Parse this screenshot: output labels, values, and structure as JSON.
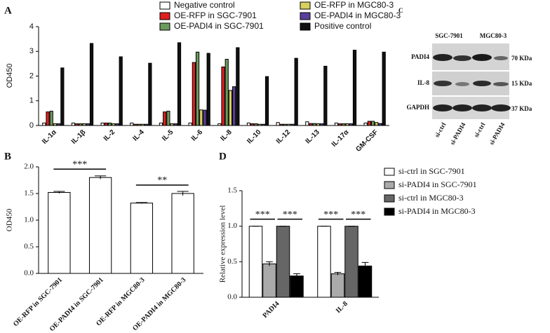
{
  "chart_data": [
    {
      "type": "bar",
      "label": "A",
      "y_label": "OD450",
      "categories": [
        "IL-1α",
        "IL-1β",
        "IL-2",
        "IL-4",
        "IL-5",
        "IL-6",
        "IL-8",
        "IL-10",
        "IL-12",
        "IL-13",
        "IL-17α",
        "GM-CSF"
      ],
      "series": [
        {
          "name": "Negative control",
          "color": "#ffffff",
          "values": [
            0.1,
            0.1,
            0.1,
            0.1,
            0.1,
            0.1,
            0.07,
            0.1,
            0.12,
            0.15,
            0.1,
            0.1
          ]
        },
        {
          "name": "OE-RFP in SGC-7901",
          "color": "#e02020",
          "values": [
            0.55,
            0.07,
            0.1,
            0.05,
            0.55,
            2.55,
            2.37,
            0.07,
            0.05,
            0.08,
            0.07,
            0.17
          ]
        },
        {
          "name": "OE-PADI4 in SGC-7901",
          "color": "#6b9a5e",
          "values": [
            0.58,
            0.07,
            0.1,
            0.05,
            0.58,
            2.97,
            2.68,
            0.07,
            0.05,
            0.08,
            0.07,
            0.17
          ]
        },
        {
          "name": "OE-RFP in MGC80-3",
          "color": "#d8d060",
          "values": [
            0.07,
            0.07,
            0.07,
            0.05,
            0.07,
            0.63,
            1.42,
            0.05,
            0.05,
            0.07,
            0.07,
            0.12
          ]
        },
        {
          "name": "OE-PADI4 in MGC80-3",
          "color": "#5a3f9a",
          "values": [
            0.07,
            0.07,
            0.07,
            0.05,
            0.07,
            0.62,
            1.57,
            0.05,
            0.05,
            0.07,
            0.07,
            0.08
          ]
        },
        {
          "name": "Positive control",
          "color": "#111111",
          "values": [
            2.33,
            3.32,
            2.78,
            2.52,
            3.35,
            2.92,
            3.15,
            1.98,
            2.72,
            2.4,
            3.05,
            2.97
          ]
        }
      ],
      "ylim": [
        0,
        4
      ],
      "yticks": [
        0,
        1,
        2,
        3,
        4
      ]
    },
    {
      "type": "bar",
      "label": "B",
      "y_label": "OD450",
      "categories": [
        "OE-RFP in SGC-7901",
        "OE-PADI4 in SGC-7901",
        "OE-RFP in MGC80-3",
        "OE-PADI4 in MGC80-3"
      ],
      "series": [
        {
          "color": "#ffffff",
          "values": [
            1.52,
            1.8,
            1.32,
            1.5
          ],
          "errors": [
            0.02,
            0.03,
            0.01,
            0.04
          ]
        }
      ],
      "ylim": [
        0,
        2
      ],
      "yticks": [
        {
          "value": 0,
          "label": "0.0"
        },
        {
          "value": 0.5,
          "label": "0.5"
        },
        {
          "value": 1,
          "label": "1.0"
        },
        {
          "value": 1.5,
          "label": "1.5"
        },
        {
          "value": 2,
          "label": "2.0"
        }
      ],
      "significance": [
        "***",
        "**"
      ]
    },
    {
      "type": "bar",
      "label": "D",
      "y_label": "Relative expression level",
      "categories": [
        "PADI4",
        "IL-8"
      ],
      "series": [
        {
          "name": "si-ctrl in SGC-7901",
          "color": "#ffffff",
          "values": [
            1,
            1
          ],
          "errors": [
            0,
            0
          ]
        },
        {
          "name": "si-PADI4 in SGC-7901",
          "color": "#aaaaaa",
          "values": [
            0.47,
            0.33
          ],
          "errors": [
            0.03,
            0.02
          ]
        },
        {
          "name": "si-ctrl in MGC80-3",
          "color": "#666666",
          "values": [
            1,
            1
          ],
          "errors": [
            0,
            0
          ]
        },
        {
          "name": "si-PADI4 in MGC80-3",
          "color": "#000000",
          "values": [
            0.3,
            0.44
          ],
          "errors": [
            0.03,
            0.05
          ]
        }
      ],
      "ylim": [
        0,
        1.5
      ],
      "yticks": [
        {
          "value": 0,
          "label": "0.0"
        },
        {
          "value": 0.5,
          "label": "0.5"
        },
        {
          "value": 1,
          "label": "1.0"
        },
        {
          "value": 1.5,
          "label": "1.5"
        }
      ],
      "significance": [
        "***",
        "***",
        "***",
        "***"
      ]
    }
  ],
  "blot": {
    "label": "C",
    "cell_lines": [
      "SGC-7901",
      "MGC80-3"
    ],
    "proteins": [
      "PADI4",
      "IL-8",
      "GAPDH"
    ],
    "sizes": [
      "70 KDa",
      "15 KDa",
      "37 KDa"
    ],
    "lanes": [
      "si-ctrl",
      "si-PADI4",
      "si-ctrl",
      "si-PADI4"
    ]
  }
}
